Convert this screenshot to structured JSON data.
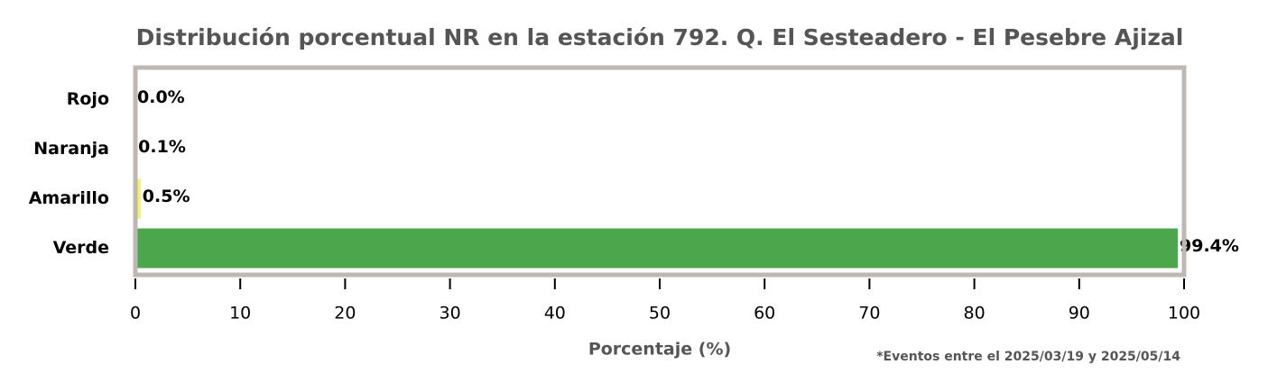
{
  "chart_data": {
    "type": "barh",
    "title": "Distribución porcentual NR en la estación 792. Q. El Sesteadero - El Pesebre Ajizal",
    "xlabel": "Porcentaje (%)",
    "annotation": "*Eventos entre el 2025/03/19 y 2025/05/14",
    "categories": [
      "Rojo",
      "Naranja",
      "Amarillo",
      "Verde"
    ],
    "values": [
      0.0,
      0.1,
      0.5,
      99.4
    ],
    "value_labels": [
      "0.0%",
      "0.1%",
      "0.5%",
      "99.4%"
    ],
    "colors": [
      "#e0312b",
      "#f59a23",
      "#f7f35a",
      "#4ca64c"
    ],
    "xlim": [
      0,
      100
    ],
    "xticks": [
      0,
      10,
      20,
      30,
      40,
      50,
      60,
      70,
      80,
      90,
      100
    ]
  }
}
